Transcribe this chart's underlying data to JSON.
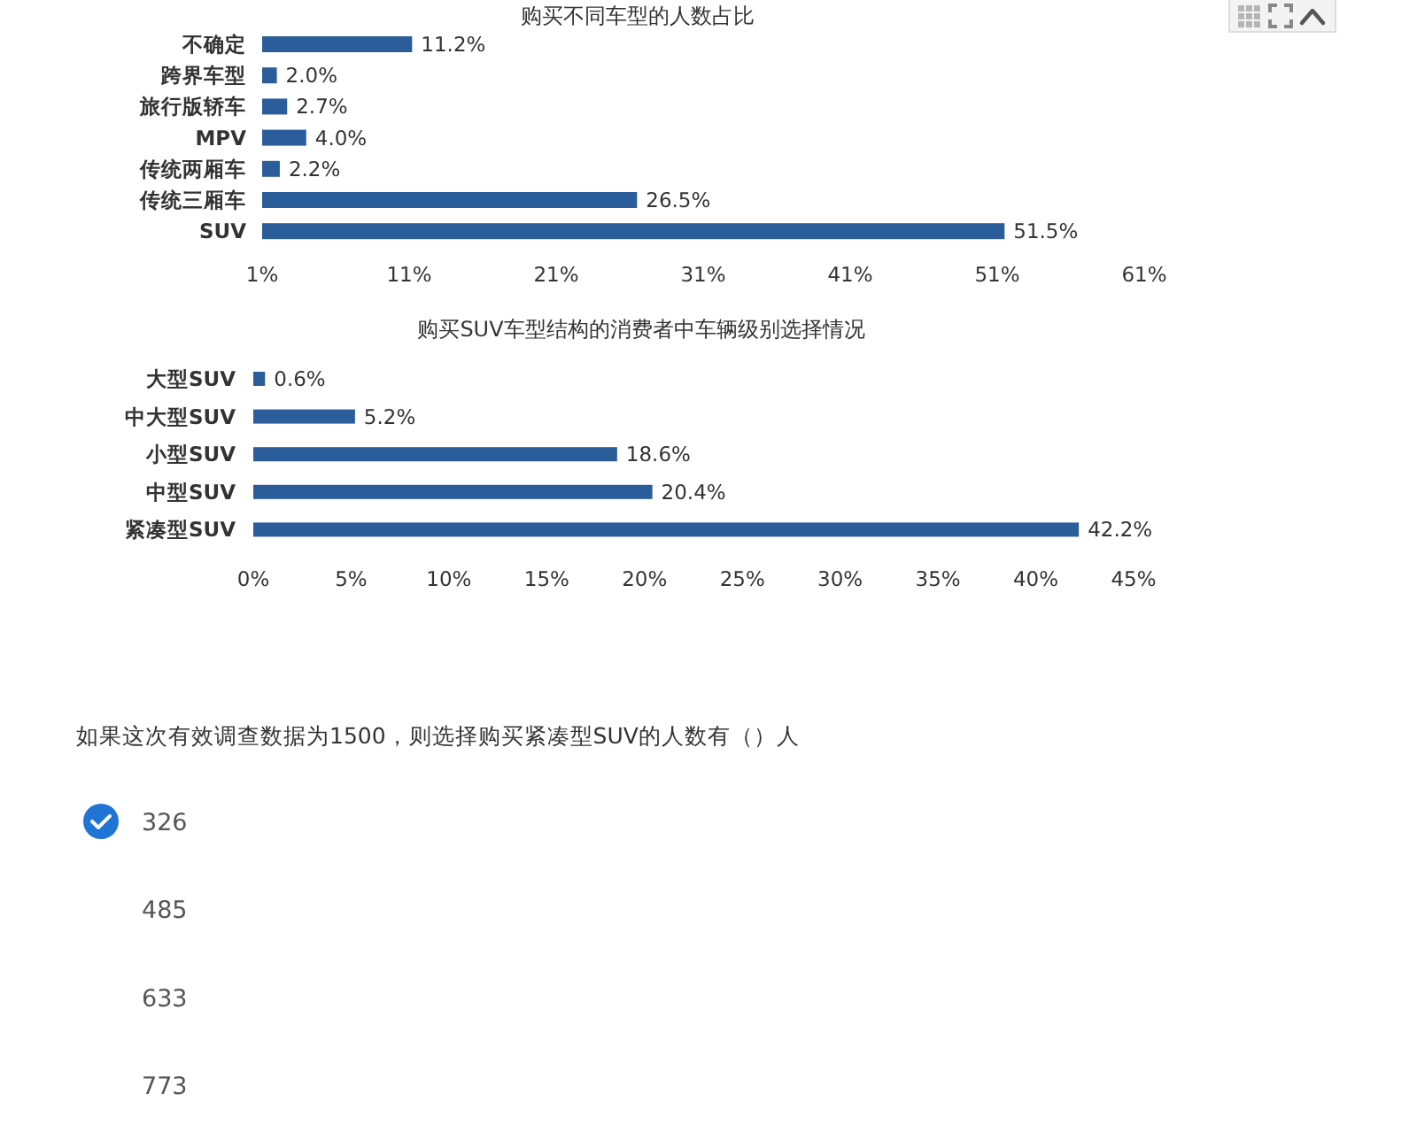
{
  "chart_data": [
    {
      "type": "bar",
      "orientation": "horizontal",
      "title": "购买不同车型的人数占比",
      "categories": [
        "不确定",
        "跨界车型",
        "旅行版轿车",
        "MPV",
        "传统两厢车",
        "传统三厢车",
        "SUV"
      ],
      "values": [
        11.2,
        2.0,
        2.7,
        4.0,
        2.2,
        26.5,
        51.5
      ],
      "value_labels": [
        "11.2%",
        "2.0%",
        "2.7%",
        "4.0%",
        "2.2%",
        "26.5%",
        "51.5%"
      ],
      "color": "#2b5d9b",
      "xlim": [
        1,
        61
      ],
      "xticks": [
        {
          "value": 1,
          "label": "1%"
        },
        {
          "value": 11,
          "label": "11%"
        },
        {
          "value": 21,
          "label": "21%"
        },
        {
          "value": 31,
          "label": "31%"
        },
        {
          "value": 41,
          "label": "41%"
        },
        {
          "value": 51,
          "label": "51%"
        },
        {
          "value": 61,
          "label": "61%"
        }
      ]
    },
    {
      "type": "bar",
      "orientation": "horizontal",
      "title": "购买SUV车型结构的消费者中车辆级别选择情况",
      "categories": [
        "大型SUV",
        "中大型SUV",
        "小型SUV",
        "中型SUV",
        "紧凑型SUV"
      ],
      "values": [
        0.6,
        5.2,
        18.6,
        20.4,
        42.2
      ],
      "value_labels": [
        "0.6%",
        "5.2%",
        "18.6%",
        "20.4%",
        "42.2%"
      ],
      "color": "#2b5d9b",
      "xlim": [
        0,
        45
      ],
      "xticks": [
        {
          "value": 0,
          "label": "0%"
        },
        {
          "value": 5,
          "label": "5%"
        },
        {
          "value": 10,
          "label": "10%"
        },
        {
          "value": 15,
          "label": "15%"
        },
        {
          "value": 20,
          "label": "20%"
        },
        {
          "value": 25,
          "label": "25%"
        },
        {
          "value": 30,
          "label": "30%"
        },
        {
          "value": 35,
          "label": "35%"
        },
        {
          "value": 40,
          "label": "40%"
        },
        {
          "value": 45,
          "label": "45%"
        }
      ]
    },
    {
      "type": "other",
      "title": "如果这次有效调查数据为1500，则选择购买紧凑型SUV的人数有（）人",
      "annotations": [
        "326",
        "485",
        "633",
        "773"
      ]
    }
  ]
}
